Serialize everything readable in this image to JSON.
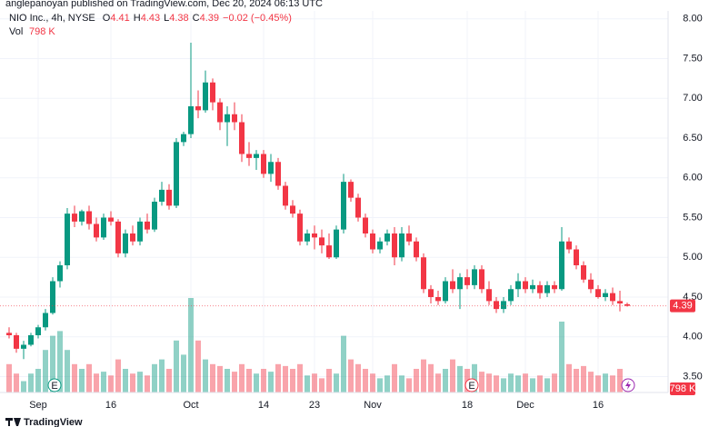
{
  "header": {
    "byline": "anglepanoyan published on TradingView.com, Dec 20, 2024 06:13 UTC",
    "symbol": "NIO Inc., 4h, NYSE",
    "ohlc_labels": [
      "O",
      "H",
      "L",
      "C"
    ],
    "change_label": "−0.02 (−0.45%)",
    "volume_label": "Vol"
  },
  "footer": {
    "brand": "TradingView"
  },
  "events": [
    "E",
    "E"
  ],
  "chart_data": {
    "type": "candlestick",
    "up_color": "#089981",
    "down_color": "#f23645",
    "grid": true,
    "ylim": [
      3.3,
      8.1
    ],
    "yticks": [
      {
        "value": 3.5,
        "label": "3.50"
      },
      {
        "value": 4,
        "label": "4.00"
      },
      {
        "value": 4.5,
        "label": "4.50"
      },
      {
        "value": 5,
        "label": "5.00"
      },
      {
        "value": 5.5,
        "label": "5.50"
      },
      {
        "value": 6,
        "label": "6.00"
      },
      {
        "value": 6.5,
        "label": "6.50"
      },
      {
        "value": 7,
        "label": "7.00"
      },
      {
        "value": 7.5,
        "label": "7.50"
      },
      {
        "value": 8,
        "label": "8.00"
      }
    ],
    "categories": [
      null,
      null,
      null,
      null,
      "Sep",
      null,
      null,
      null,
      null,
      null,
      null,
      null,
      null,
      null,
      "16",
      null,
      null,
      null,
      null,
      null,
      null,
      null,
      null,
      null,
      null,
      "Oct",
      null,
      null,
      null,
      null,
      null,
      null,
      null,
      null,
      null,
      "14",
      null,
      null,
      null,
      null,
      null,
      null,
      "23",
      null,
      null,
      null,
      null,
      null,
      null,
      null,
      "Nov",
      null,
      null,
      null,
      null,
      null,
      null,
      null,
      null,
      null,
      null,
      null,
      null,
      "18",
      null,
      null,
      null,
      null,
      null,
      null,
      null,
      "Dec",
      null,
      null,
      null,
      null,
      null,
      null,
      null,
      null,
      null,
      "16",
      null,
      null,
      null,
      null
    ],
    "ohlc": [
      [
        4.05,
        4.12,
        3.98,
        4.02
      ],
      [
        4.02,
        4.05,
        3.8,
        3.85
      ],
      [
        3.85,
        3.95,
        3.72,
        3.9
      ],
      [
        3.9,
        4.05,
        3.88,
        4.02
      ],
      [
        4.02,
        4.15,
        3.98,
        4.12
      ],
      [
        4.12,
        4.35,
        4.08,
        4.3
      ],
      [
        4.3,
        4.75,
        4.28,
        4.7
      ],
      [
        4.7,
        4.95,
        4.62,
        4.9
      ],
      [
        4.9,
        5.62,
        4.85,
        5.55
      ],
      [
        5.55,
        5.65,
        5.38,
        5.45
      ],
      [
        5.45,
        5.6,
        5.4,
        5.58
      ],
      [
        5.58,
        5.65,
        5.35,
        5.42
      ],
      [
        5.42,
        5.5,
        5.2,
        5.25
      ],
      [
        5.25,
        5.55,
        5.22,
        5.5
      ],
      [
        5.5,
        5.58,
        5.4,
        5.45
      ],
      [
        5.45,
        5.48,
        5,
        5.05
      ],
      [
        5.05,
        5.35,
        5,
        5.3
      ],
      [
        5.3,
        5.4,
        5.15,
        5.2
      ],
      [
        5.2,
        5.5,
        5.15,
        5.45
      ],
      [
        5.45,
        5.55,
        5.3,
        5.35
      ],
      [
        5.35,
        5.75,
        5.32,
        5.7
      ],
      [
        5.7,
        5.95,
        5.65,
        5.85
      ],
      [
        5.85,
        5.92,
        5.6,
        5.65
      ],
      [
        5.65,
        6.5,
        5.62,
        6.45
      ],
      [
        6.45,
        6.58,
        6.4,
        6.55
      ],
      [
        6.55,
        7.7,
        6.5,
        6.9
      ],
      [
        6.9,
        7.1,
        6.75,
        6.85
      ],
      [
        6.85,
        7.35,
        6.82,
        7.2
      ],
      [
        7.2,
        7.25,
        6.85,
        6.95
      ],
      [
        6.95,
        7,
        6.6,
        6.7
      ],
      [
        6.7,
        6.9,
        6.4,
        6.8
      ],
      [
        6.8,
        6.95,
        6.6,
        6.7
      ],
      [
        6.7,
        6.8,
        6.2,
        6.3
      ],
      [
        6.3,
        6.45,
        6.15,
        6.25
      ],
      [
        6.25,
        6.35,
        6.1,
        6.3
      ],
      [
        6.3,
        6.35,
        6,
        6.05
      ],
      [
        6.05,
        6.3,
        5.95,
        6.2
      ],
      [
        6.2,
        6.25,
        5.85,
        5.9
      ],
      [
        5.9,
        5.95,
        5.6,
        5.65
      ],
      [
        5.65,
        5.72,
        5.5,
        5.55
      ],
      [
        5.55,
        5.6,
        5.15,
        5.2
      ],
      [
        5.2,
        5.35,
        5.15,
        5.3
      ],
      [
        5.3,
        5.4,
        5.1,
        5.25
      ],
      [
        5.25,
        5.35,
        5.05,
        5.15
      ],
      [
        5.15,
        5.3,
        4.98,
        5
      ],
      [
        5,
        5.4,
        4.98,
        5.35
      ],
      [
        5.35,
        6.05,
        5.3,
        5.95
      ],
      [
        5.95,
        5.98,
        5.7,
        5.75
      ],
      [
        5.75,
        5.8,
        5.45,
        5.5
      ],
      [
        5.5,
        5.55,
        5.25,
        5.3
      ],
      [
        5.3,
        5.35,
        5.05,
        5.1
      ],
      [
        5.1,
        5.25,
        5.05,
        5.2
      ],
      [
        5.2,
        5.35,
        5.15,
        5.3
      ],
      [
        5.3,
        5.38,
        4.9,
        5
      ],
      [
        5,
        5.38,
        4.95,
        5.3
      ],
      [
        5.3,
        5.4,
        5.15,
        5.2
      ],
      [
        5.2,
        5.25,
        4.95,
        5
      ],
      [
        5,
        5.05,
        4.55,
        4.6
      ],
      [
        4.6,
        4.65,
        4.42,
        4.5
      ],
      [
        4.5,
        4.58,
        4.4,
        4.45
      ],
      [
        4.45,
        4.75,
        4.42,
        4.7
      ],
      [
        4.7,
        4.85,
        4.55,
        4.6
      ],
      [
        4.6,
        4.8,
        4.35,
        4.75
      ],
      [
        4.75,
        4.85,
        4.6,
        4.65
      ],
      [
        4.65,
        4.9,
        4.6,
        4.85
      ],
      [
        4.85,
        4.9,
        4.55,
        4.6
      ],
      [
        4.6,
        4.7,
        4.4,
        4.45
      ],
      [
        4.45,
        4.5,
        4.3,
        4.35
      ],
      [
        4.35,
        4.5,
        4.3,
        4.45
      ],
      [
        4.45,
        4.65,
        4.4,
        4.6
      ],
      [
        4.6,
        4.8,
        4.5,
        4.7
      ],
      [
        4.7,
        4.75,
        4.55,
        4.6
      ],
      [
        4.6,
        4.72,
        4.55,
        4.65
      ],
      [
        4.65,
        4.7,
        4.48,
        4.55
      ],
      [
        4.55,
        4.7,
        4.5,
        4.65
      ],
      [
        4.65,
        4.7,
        4.55,
        4.6
      ],
      [
        4.6,
        5.38,
        4.58,
        5.2
      ],
      [
        5.2,
        5.25,
        5.05,
        5.1
      ],
      [
        5.1,
        5.15,
        4.85,
        4.9
      ],
      [
        4.9,
        4.95,
        4.68,
        4.72
      ],
      [
        4.72,
        4.8,
        4.55,
        4.6
      ],
      [
        4.6,
        4.65,
        4.48,
        4.5
      ],
      [
        4.5,
        4.6,
        4.45,
        4.55
      ],
      [
        4.55,
        4.62,
        4.4,
        4.45
      ],
      [
        4.45,
        4.58,
        4.32,
        4.42
      ],
      [
        4.41,
        4.43,
        4.38,
        4.39
      ]
    ],
    "volume": {
      "values": [
        30000000,
        20000000,
        12000000,
        20000000,
        25000000,
        45000000,
        60000000,
        65000000,
        45000000,
        30000000,
        25000000,
        30000000,
        20000000,
        22000000,
        18000000,
        35000000,
        25000000,
        20000000,
        22000000,
        18000000,
        30000000,
        35000000,
        25000000,
        55000000,
        40000000,
        100000000,
        55000000,
        35000000,
        30000000,
        28000000,
        25000000,
        22000000,
        30000000,
        25000000,
        20000000,
        25000000,
        22000000,
        30000000,
        28000000,
        25000000,
        30000000,
        18000000,
        20000000,
        15000000,
        25000000,
        20000000,
        60000000,
        35000000,
        30000000,
        25000000,
        20000000,
        15000000,
        18000000,
        30000000,
        18000000,
        15000000,
        25000000,
        35000000,
        30000000,
        20000000,
        25000000,
        35000000,
        28000000,
        25000000,
        30000000,
        22000000,
        20000000,
        18000000,
        15000000,
        20000000,
        18000000,
        20000000,
        15000000,
        18000000,
        15000000,
        20000000,
        75000000,
        30000000,
        25000000,
        28000000,
        22000000,
        18000000,
        20000000,
        18000000,
        25000000,
        798000
      ],
      "last_label": "798 K"
    }
  }
}
